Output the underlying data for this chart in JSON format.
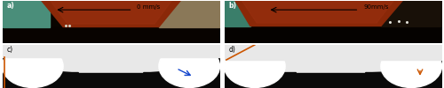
{
  "fig_width": 5.0,
  "fig_height": 1.0,
  "dpi": 100,
  "panels": [
    "a)",
    "b)",
    "c)",
    "d)"
  ],
  "velocities": [
    "0 mm/s",
    "90mm/s"
  ],
  "sim_bg_color": "#e8e8e8",
  "sim_black": "#0a0a0a",
  "sim_white": "#ffffff",
  "arrow_blue": "#1144cc",
  "arrow_orange": "#cc5500",
  "orange_line": "#cc5500",
  "label_fontsize": 5.5,
  "annot_fontsize": 5.0,
  "photo_a_bg": "#2a1500",
  "photo_trap_color": "#8B2800",
  "photo_left_air_a": "#5a9e88",
  "photo_right_air_a": "#9a8a6a",
  "photo_b_bg": "#1a0800",
  "photo_left_air_b": "#4a8e78",
  "photo_right_air_b": "#2a1a0a"
}
